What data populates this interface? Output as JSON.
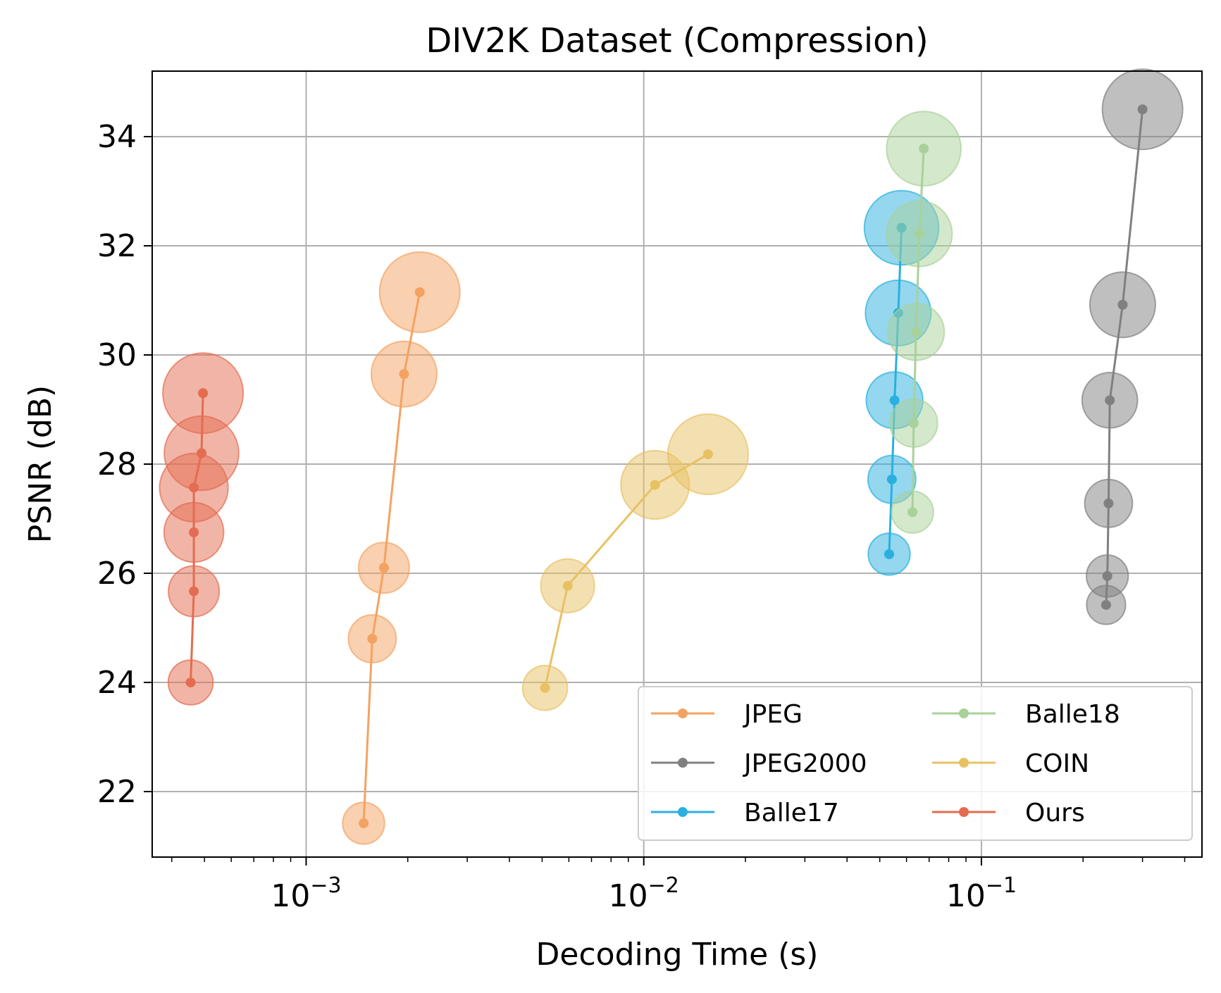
{
  "chart_data": {
    "type": "scatter",
    "title": "DIV2K Dataset (Compression)",
    "xlabel": "Decoding Time (s)",
    "ylabel": "PSNR (dB)",
    "xscale": "log",
    "xlim": [
      0.00035,
      0.45
    ],
    "ylim": [
      20.8,
      35.2
    ],
    "x_ticks": [
      {
        "value": 0.001,
        "base": "10",
        "exp": "−3"
      },
      {
        "value": 0.01,
        "base": "10",
        "exp": "−2"
      },
      {
        "value": 0.1,
        "base": "10",
        "exp": "−1"
      }
    ],
    "y_ticks": [
      22,
      24,
      26,
      28,
      30,
      32,
      34
    ],
    "grid": true,
    "legend_position": "lower-right",
    "legend_columns": 2,
    "note": "",
    "series": [
      {
        "name": "JPEG",
        "color": "#f4a261",
        "points": [
          {
            "x": 0.00148,
            "y": 21.42,
            "size": 0.35
          },
          {
            "x": 0.00157,
            "y": 24.8,
            "size": 0.45
          },
          {
            "x": 0.0017,
            "y": 26.1,
            "size": 0.5
          },
          {
            "x": 0.00195,
            "y": 29.65,
            "size": 0.75
          },
          {
            "x": 0.00217,
            "y": 31.15,
            "size": 1.0
          }
        ]
      },
      {
        "name": "JPEG2000",
        "color": "#808080",
        "points": [
          {
            "x": 0.234,
            "y": 25.42,
            "size": 0.3
          },
          {
            "x": 0.236,
            "y": 25.95,
            "size": 0.35
          },
          {
            "x": 0.238,
            "y": 27.28,
            "size": 0.45
          },
          {
            "x": 0.24,
            "y": 29.17,
            "size": 0.58
          },
          {
            "x": 0.262,
            "y": 30.92,
            "size": 0.75
          },
          {
            "x": 0.3,
            "y": 34.5,
            "size": 1.0
          }
        ]
      },
      {
        "name": "Balle17",
        "color": "#2ab0de",
        "points": [
          {
            "x": 0.0533,
            "y": 26.35,
            "size": 0.35
          },
          {
            "x": 0.0543,
            "y": 27.72,
            "size": 0.45
          },
          {
            "x": 0.0553,
            "y": 29.17,
            "size": 0.6
          },
          {
            "x": 0.0567,
            "y": 30.77,
            "size": 0.75
          },
          {
            "x": 0.058,
            "y": 32.33,
            "size": 0.9
          }
        ]
      },
      {
        "name": "Balle18",
        "color": "#a9d19a",
        "points": [
          {
            "x": 0.0625,
            "y": 27.12,
            "size": 0.35
          },
          {
            "x": 0.063,
            "y": 28.75,
            "size": 0.45
          },
          {
            "x": 0.064,
            "y": 30.42,
            "size": 0.6
          },
          {
            "x": 0.0655,
            "y": 32.22,
            "size": 0.75
          },
          {
            "x": 0.0675,
            "y": 33.78,
            "size": 0.9
          }
        ]
      },
      {
        "name": "COIN",
        "color": "#e8c163",
        "points": [
          {
            "x": 0.0051,
            "y": 23.9,
            "size": 0.4
          },
          {
            "x": 0.00595,
            "y": 25.77,
            "size": 0.55
          },
          {
            "x": 0.0108,
            "y": 27.62,
            "size": 0.8
          },
          {
            "x": 0.0155,
            "y": 28.18,
            "size": 1.0
          }
        ]
      },
      {
        "name": "Ours",
        "color": "#e46c50",
        "points": [
          {
            "x": 0.000455,
            "y": 24.0,
            "size": 0.4
          },
          {
            "x": 0.000465,
            "y": 25.67,
            "size": 0.5
          },
          {
            "x": 0.000465,
            "y": 26.75,
            "size": 0.65
          },
          {
            "x": 0.000465,
            "y": 27.57,
            "size": 0.8
          },
          {
            "x": 0.00049,
            "y": 28.2,
            "size": 0.9
          },
          {
            "x": 0.000495,
            "y": 29.3,
            "size": 1.0
          }
        ]
      }
    ]
  }
}
